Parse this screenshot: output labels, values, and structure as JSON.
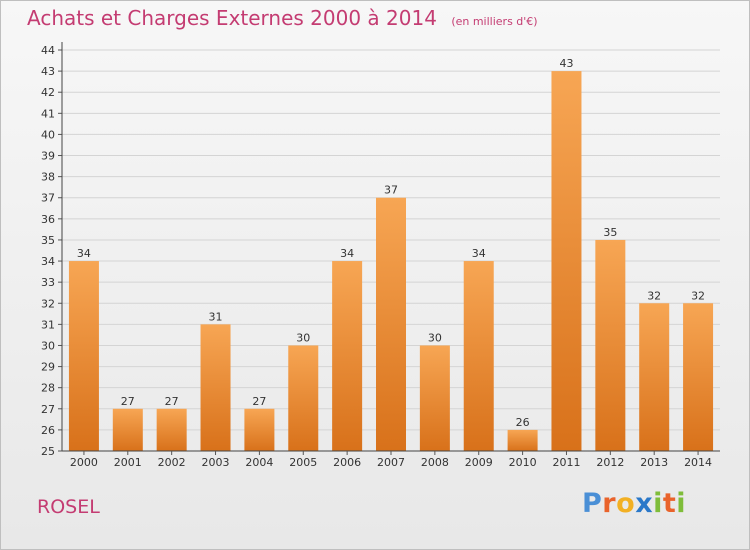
{
  "title": "Achats et Charges Externes 2000 à 2014",
  "unit": "(en milliers d'€)",
  "footer_label": "ROSEL",
  "logo": "Proxiti",
  "colors": {
    "title": "#c43c72",
    "bar_light": "#f6a24e",
    "bar_dark": "#d9731c",
    "grid": "#d6d6d6"
  },
  "chart_data": {
    "type": "bar",
    "title": "Achats et Charges Externes 2000 à 2014",
    "subtitle": "(en milliers d'€)",
    "categories": [
      "2000",
      "2001",
      "2002",
      "2003",
      "2004",
      "2005",
      "2006",
      "2007",
      "2008",
      "2009",
      "2010",
      "2011",
      "2012",
      "2013",
      "2014"
    ],
    "values": [
      34,
      27,
      27,
      31,
      27,
      30,
      34,
      37,
      30,
      34,
      26,
      43,
      35,
      32,
      32
    ],
    "ylim": [
      25,
      44
    ],
    "yticks": [
      25,
      26,
      27,
      28,
      29,
      30,
      31,
      32,
      33,
      34,
      35,
      36,
      37,
      38,
      39,
      40,
      41,
      42,
      43,
      44
    ],
    "grid": true,
    "data_labels": true
  }
}
